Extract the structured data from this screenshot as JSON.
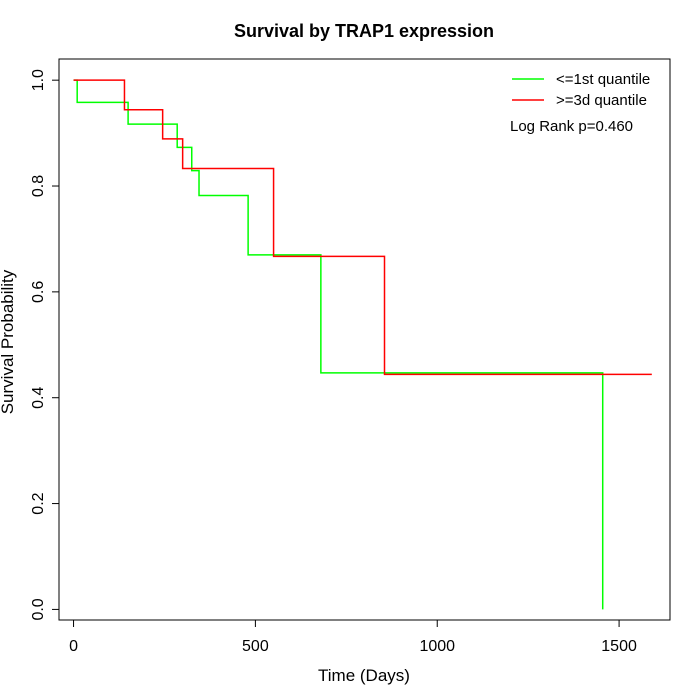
{
  "chart_data": {
    "type": "line",
    "step": true,
    "title": "Survival by TRAP1 expression",
    "xlabel": "Time (Days)",
    "ylabel": "Survival Probability",
    "xlim": [
      -40,
      1640
    ],
    "ylim": [
      -0.02,
      1.04
    ],
    "xticks": [
      0,
      500,
      1000,
      1500
    ],
    "yticks": [
      0.0,
      0.2,
      0.4,
      0.6,
      0.8,
      1.0
    ],
    "xtick_labels": [
      "0",
      "500",
      "1000",
      "1500"
    ],
    "ytick_labels": [
      "0.0",
      "0.2",
      "0.4",
      "0.6",
      "0.8",
      "1.0"
    ],
    "grid": false,
    "legend_position": "top-right",
    "annotation": "Log Rank p=0.460",
    "series": [
      {
        "name": "<=1st quantile",
        "color": "#00ff00",
        "x": [
          0,
          10,
          150,
          285,
          325,
          345,
          480,
          680,
          1455,
          1455
        ],
        "y": [
          1.0,
          0.958,
          0.917,
          0.873,
          0.829,
          0.782,
          0.67,
          0.447,
          0.447,
          0.0
        ]
      },
      {
        "name": ">=3d quantile",
        "color": "#ff0000",
        "x": [
          0,
          140,
          245,
          300,
          550,
          855,
          1590
        ],
        "y": [
          1.0,
          0.944,
          0.889,
          0.833,
          0.667,
          0.444,
          0.444
        ]
      }
    ]
  }
}
